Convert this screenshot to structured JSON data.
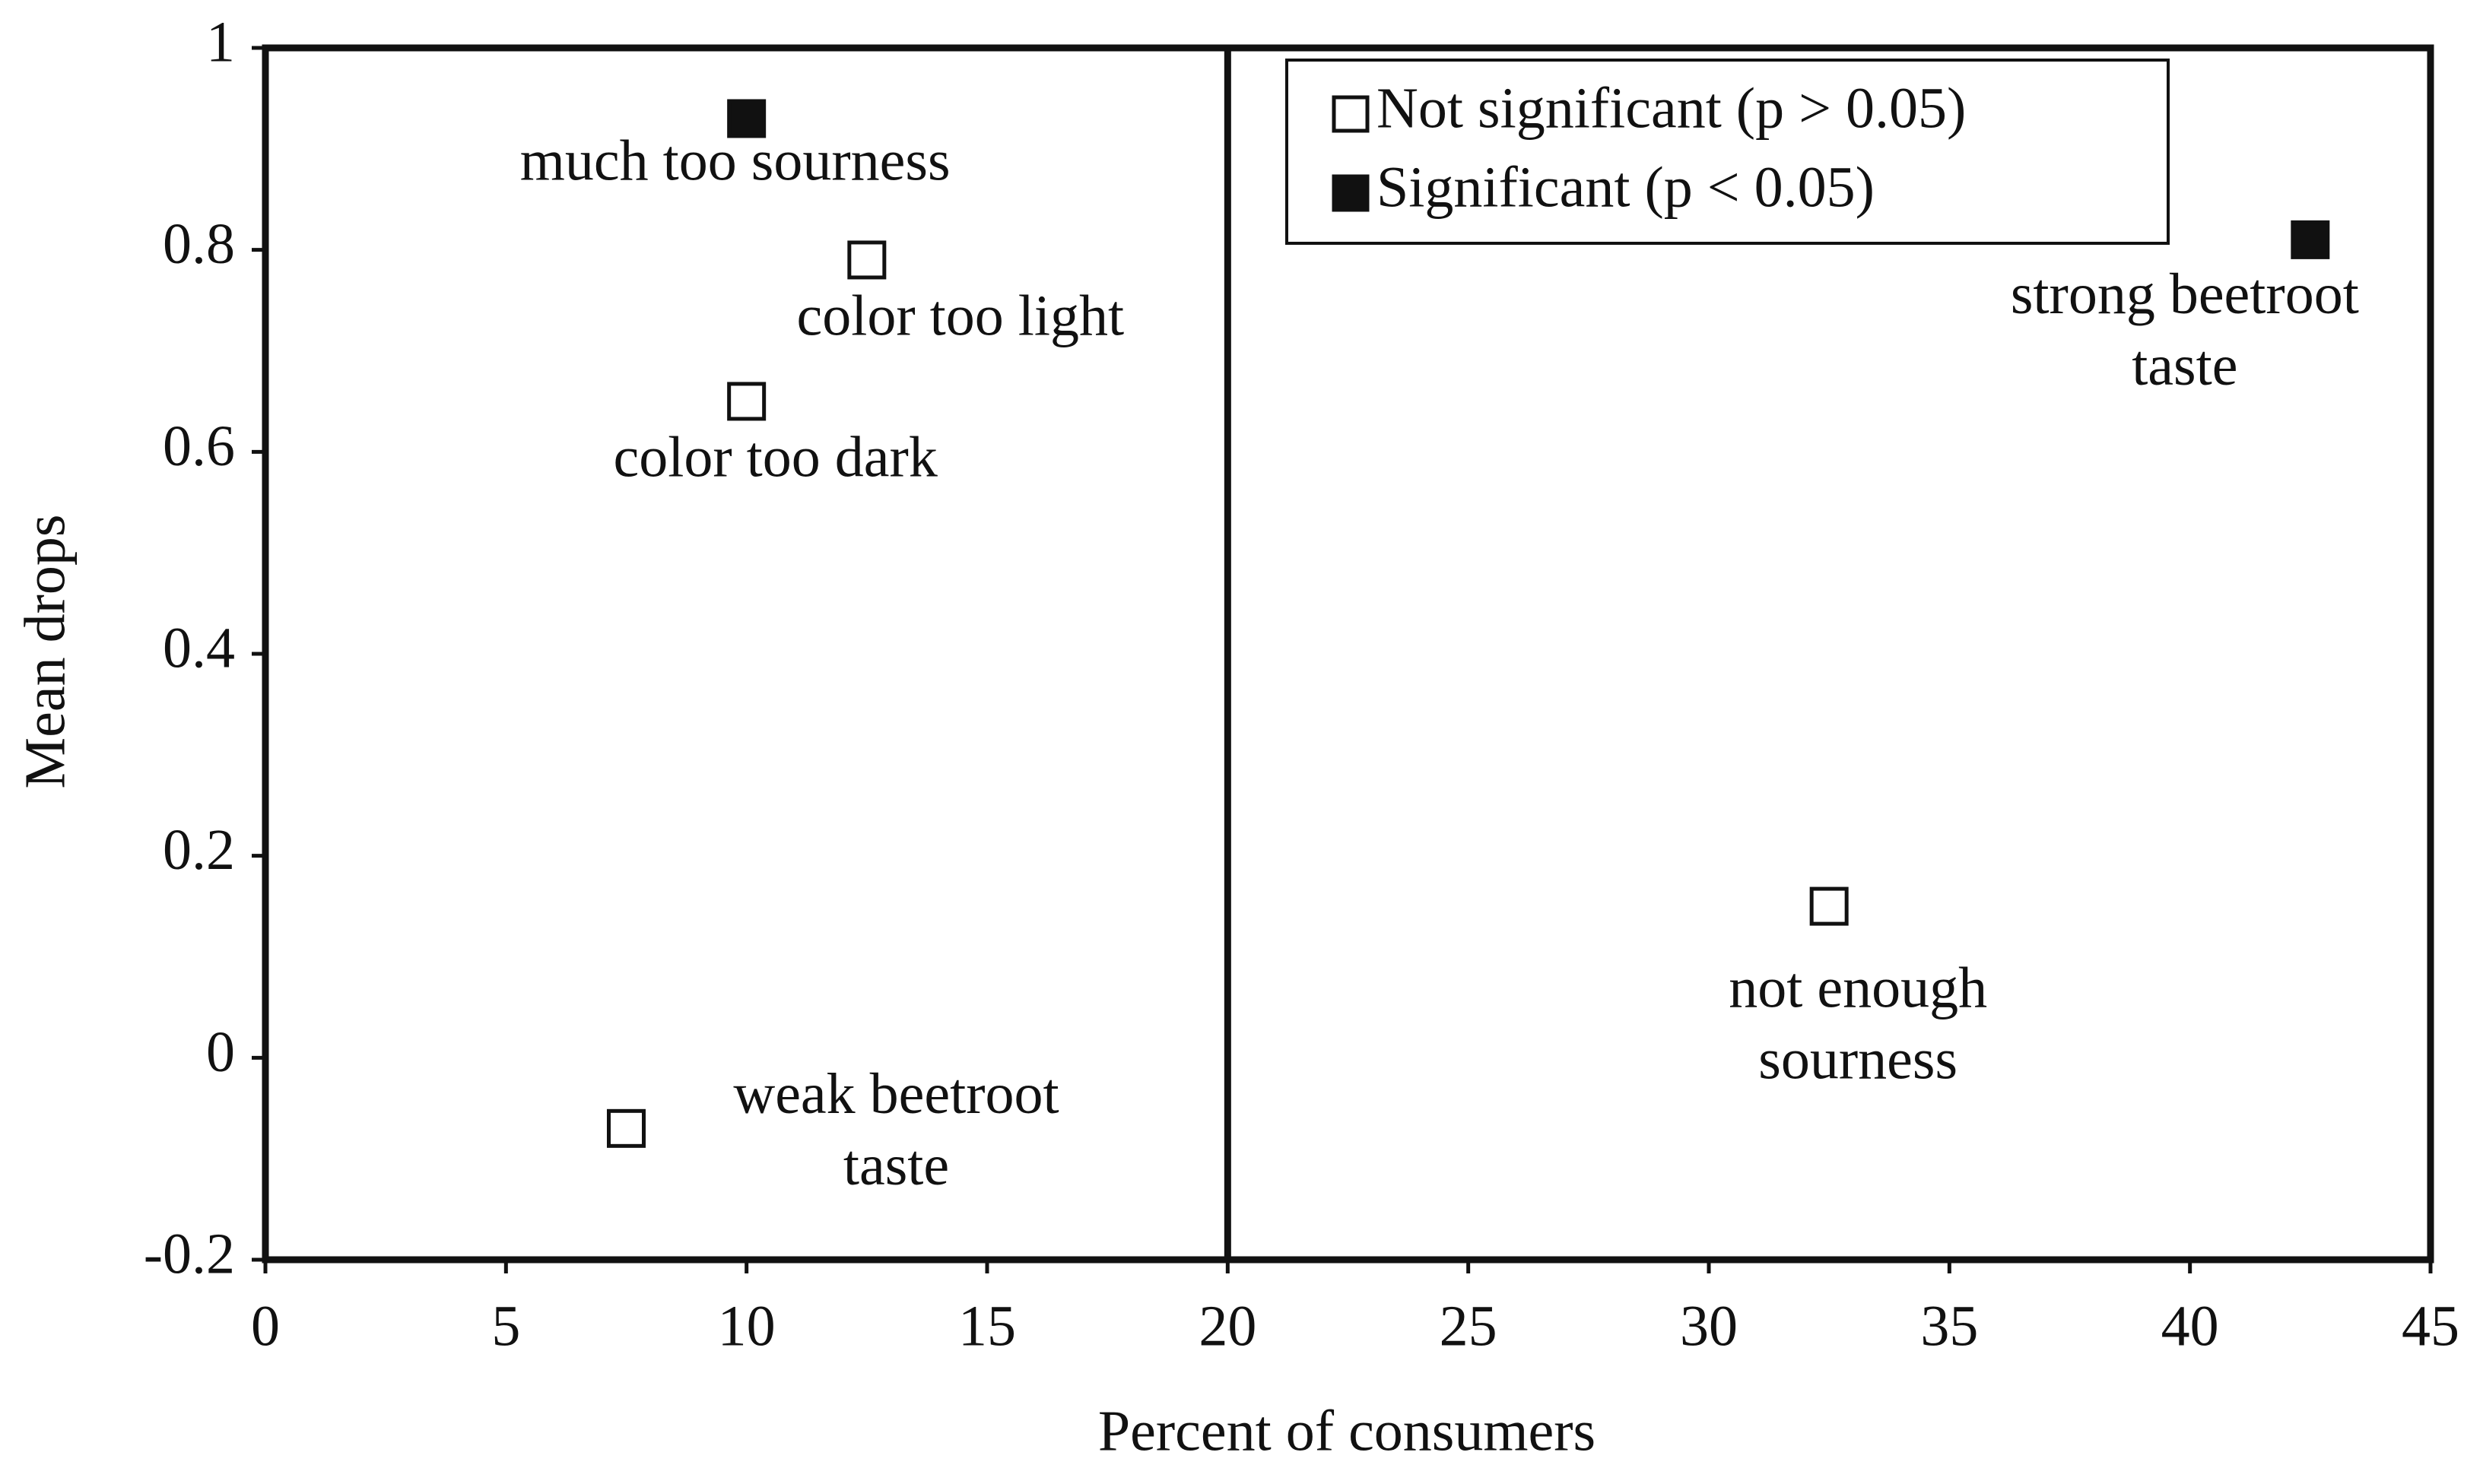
{
  "chart_data": {
    "type": "scatter",
    "xlabel": "Percent of consumers",
    "ylabel": "Mean drops",
    "xlim": [
      0,
      45
    ],
    "xticks": [
      0,
      5,
      10,
      15,
      20,
      25,
      30,
      35,
      40,
      45
    ],
    "ylim": [
      -0.2,
      1
    ],
    "yticks": [
      -0.2,
      0,
      0.2,
      0.4,
      0.6,
      0.8,
      1
    ],
    "vline": 20,
    "legend": "upper-right",
    "series": [
      {
        "name": "Not significant (p > 0.05)",
        "color": "#ffffff",
        "x": [
          12.5,
          10,
          7.5,
          32.5
        ],
        "values": [
          0.79,
          0.65,
          -0.07,
          0.15
        ],
        "labels": [
          [
            "color too light"
          ],
          [
            "color too dark"
          ],
          [
            "weak beetroot",
            "taste"
          ],
          [
            "not enough",
            "sourness"
          ]
        ]
      },
      {
        "name": "Significant (p < 0.05)",
        "color": "#111111",
        "x": [
          10,
          42.5
        ],
        "values": [
          0.93,
          0.81
        ],
        "labels": [
          [
            "much too sourness"
          ],
          [
            "strong beetroot",
            "taste"
          ]
        ]
      }
    ]
  }
}
